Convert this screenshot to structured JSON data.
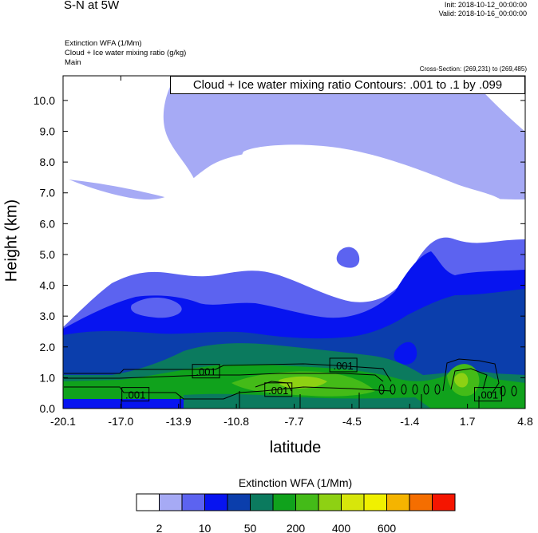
{
  "header": {
    "title": "S-N at 5W",
    "init": "Init: 2018-10-12_00:00:00",
    "valid": "Valid: 2018-10-16_00:00:00",
    "variable_lines": [
      "Extinction WFA   (1/Mm)",
      "Cloud + Ice water mixing ratio   (g/kg)",
      "Main"
    ],
    "cross_section": "Cross-Section: (269,231) to (269,485)",
    "contour_info": "Cloud + Ice water mixing ratio Contours: .001 to .1 by .099"
  },
  "legend": {
    "title": "Extinction WFA  (1/Mm)",
    "colors": [
      "#ffffff",
      "#a6aaf5",
      "#5c63f0",
      "#0714f0",
      "#0b3eac",
      "#0b7a5e",
      "#10a21c",
      "#44bb18",
      "#8ed113",
      "#d7e60b",
      "#f0f000",
      "#f5b400",
      "#f56e00",
      "#f51500"
    ],
    "tick_labels": [
      "2",
      "10",
      "50",
      "200",
      "400",
      "600"
    ]
  },
  "chart_data": {
    "type": "heatmap",
    "title": "S-N at 5W",
    "xlabel": "latitude",
    "ylabel": "Height (km)",
    "x_ticks": [
      "-20.1",
      "-17.0",
      "-13.9",
      "-10.8",
      "-7.7",
      "-4.5",
      "-1.4",
      "1.7",
      "4.8"
    ],
    "y_ticks": [
      "0.0",
      "1.0",
      "2.0",
      "3.0",
      "4.0",
      "5.0",
      "6.0",
      "7.0",
      "8.0",
      "9.0",
      "10.0"
    ],
    "xlim": [
      -20.1,
      4.8
    ],
    "ylim": [
      0.0,
      10.8
    ],
    "contour_labels": [
      {
        "text": ".001",
        "x": -16.2,
        "y": 0.45
      },
      {
        "text": ".001",
        "x": -12.4,
        "y": 1.2
      },
      {
        "text": ".001",
        "x": -8.5,
        "y": 0.6
      },
      {
        "text": ".001",
        "x": -5.0,
        "y": 1.4
      },
      {
        "text": ".001",
        "x": 2.8,
        "y": 0.45
      }
    ]
  }
}
